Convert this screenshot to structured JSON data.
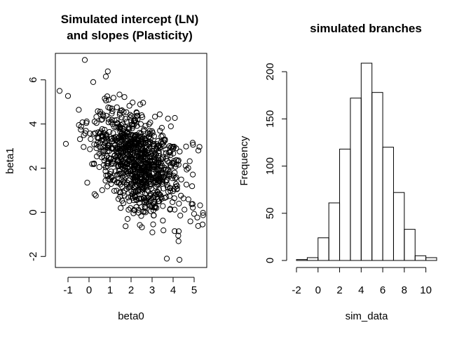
{
  "chart_data": [
    {
      "type": "scatter",
      "title_lines": [
        "Simulated intercept (LN)",
        "and slopes (Plasticity)"
      ],
      "xlabel": "beta0",
      "ylabel": "beta1",
      "xticks": [
        -1,
        0,
        1,
        2,
        3,
        4,
        5
      ],
      "yticks": [
        -2,
        0,
        2,
        4,
        6
      ],
      "xlim": [
        -1.6,
        5.6
      ],
      "ylim": [
        -2.5,
        7.2
      ],
      "marker": "open-circle",
      "n_points": 1000,
      "mean": [
        2.3,
        2.3
      ],
      "sd": [
        1.05,
        1.2
      ],
      "correlation": -0.45,
      "notable_points": [
        [
          -1.4,
          5.5
        ],
        [
          -1.1,
          3.1
        ],
        [
          -0.2,
          6.9
        ],
        [
          0.2,
          5.9
        ],
        [
          5.4,
          -0.55
        ],
        [
          4.3,
          -2.15
        ],
        [
          3.7,
          -2.1
        ],
        [
          5.2,
          2.8
        ],
        [
          0.8,
          6.15
        ]
      ]
    },
    {
      "type": "histogram",
      "title": "simulated branches",
      "xlabel": "sim_data",
      "ylabel": "Frequency",
      "bin_edges": [
        -2,
        -1,
        0,
        1,
        2,
        3,
        4,
        5,
        6,
        7,
        8,
        9,
        10,
        11
      ],
      "counts": [
        1,
        3,
        24,
        61,
        118,
        172,
        209,
        178,
        120,
        72,
        33,
        5,
        3
      ],
      "xticks": [
        -2,
        0,
        2,
        4,
        6,
        8,
        10
      ],
      "yticks": [
        0,
        50,
        100,
        150,
        200
      ],
      "xlim": [
        -2,
        11
      ],
      "ylim": [
        0,
        209
      ]
    }
  ]
}
